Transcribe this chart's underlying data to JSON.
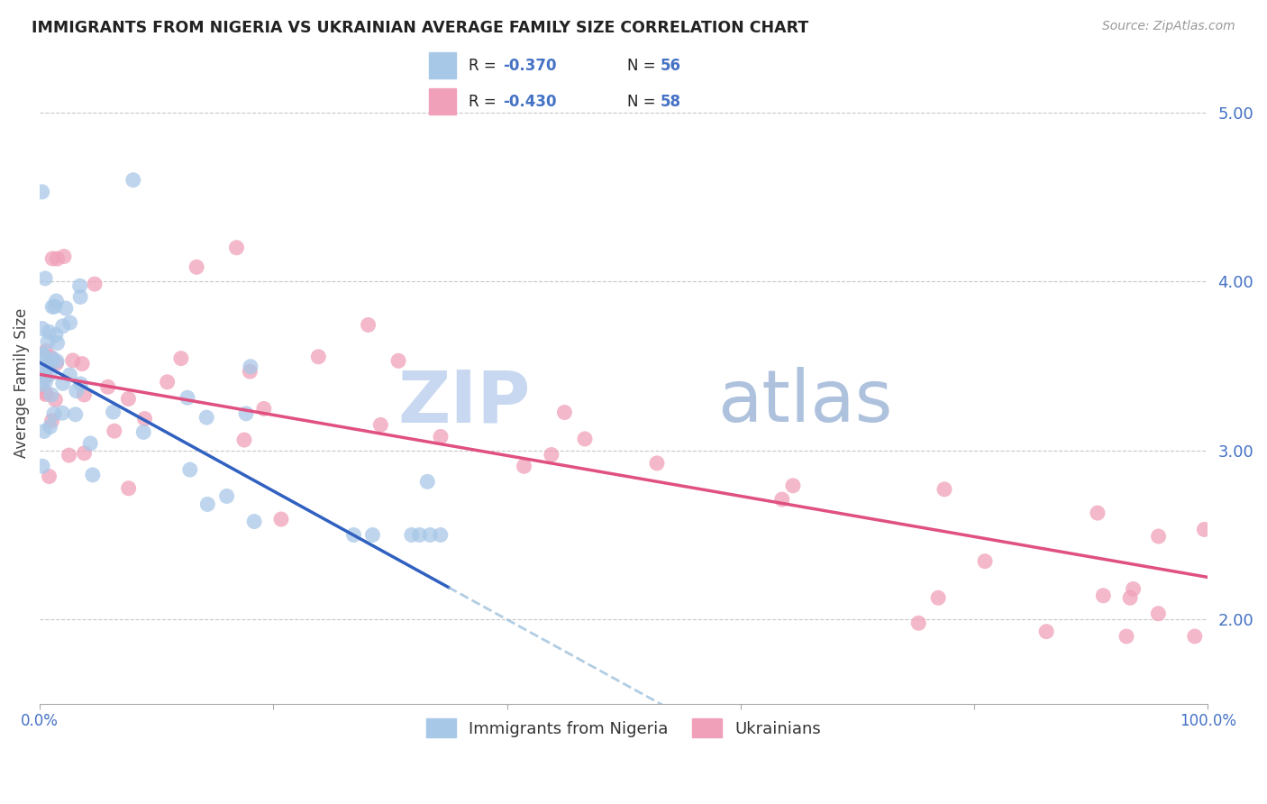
{
  "title": "IMMIGRANTS FROM NIGERIA VS UKRAINIAN AVERAGE FAMILY SIZE CORRELATION CHART",
  "source": "Source: ZipAtlas.com",
  "ylabel": "Average Family Size",
  "right_yticks": [
    2.0,
    3.0,
    4.0,
    5.0
  ],
  "right_ytick_labels": [
    "2.00",
    "3.00",
    "4.00",
    "5.00"
  ],
  "legend_label1": "Immigrants from Nigeria",
  "legend_label2": "Ukrainians",
  "color_blue": "#a8c8e8",
  "color_pink": "#f0a0b8",
  "color_blue_line": "#3060c0",
  "color_pink_line": "#e05080",
  "color_blue_dashed": "#90b8d8",
  "axis_color": "#4472c4",
  "title_color": "#222222",
  "xmin": 0,
  "xmax": 100,
  "ymin": 1.5,
  "ymax": 5.3,
  "nigeria_intercept": 3.52,
  "nigeria_slope": -0.038,
  "ukraine_intercept": 3.45,
  "ukraine_slope": -0.012,
  "nigeria_solid_end": 35,
  "watermark_zip_color": "#c8d8f0",
  "watermark_atlas_color": "#a0b8d8"
}
